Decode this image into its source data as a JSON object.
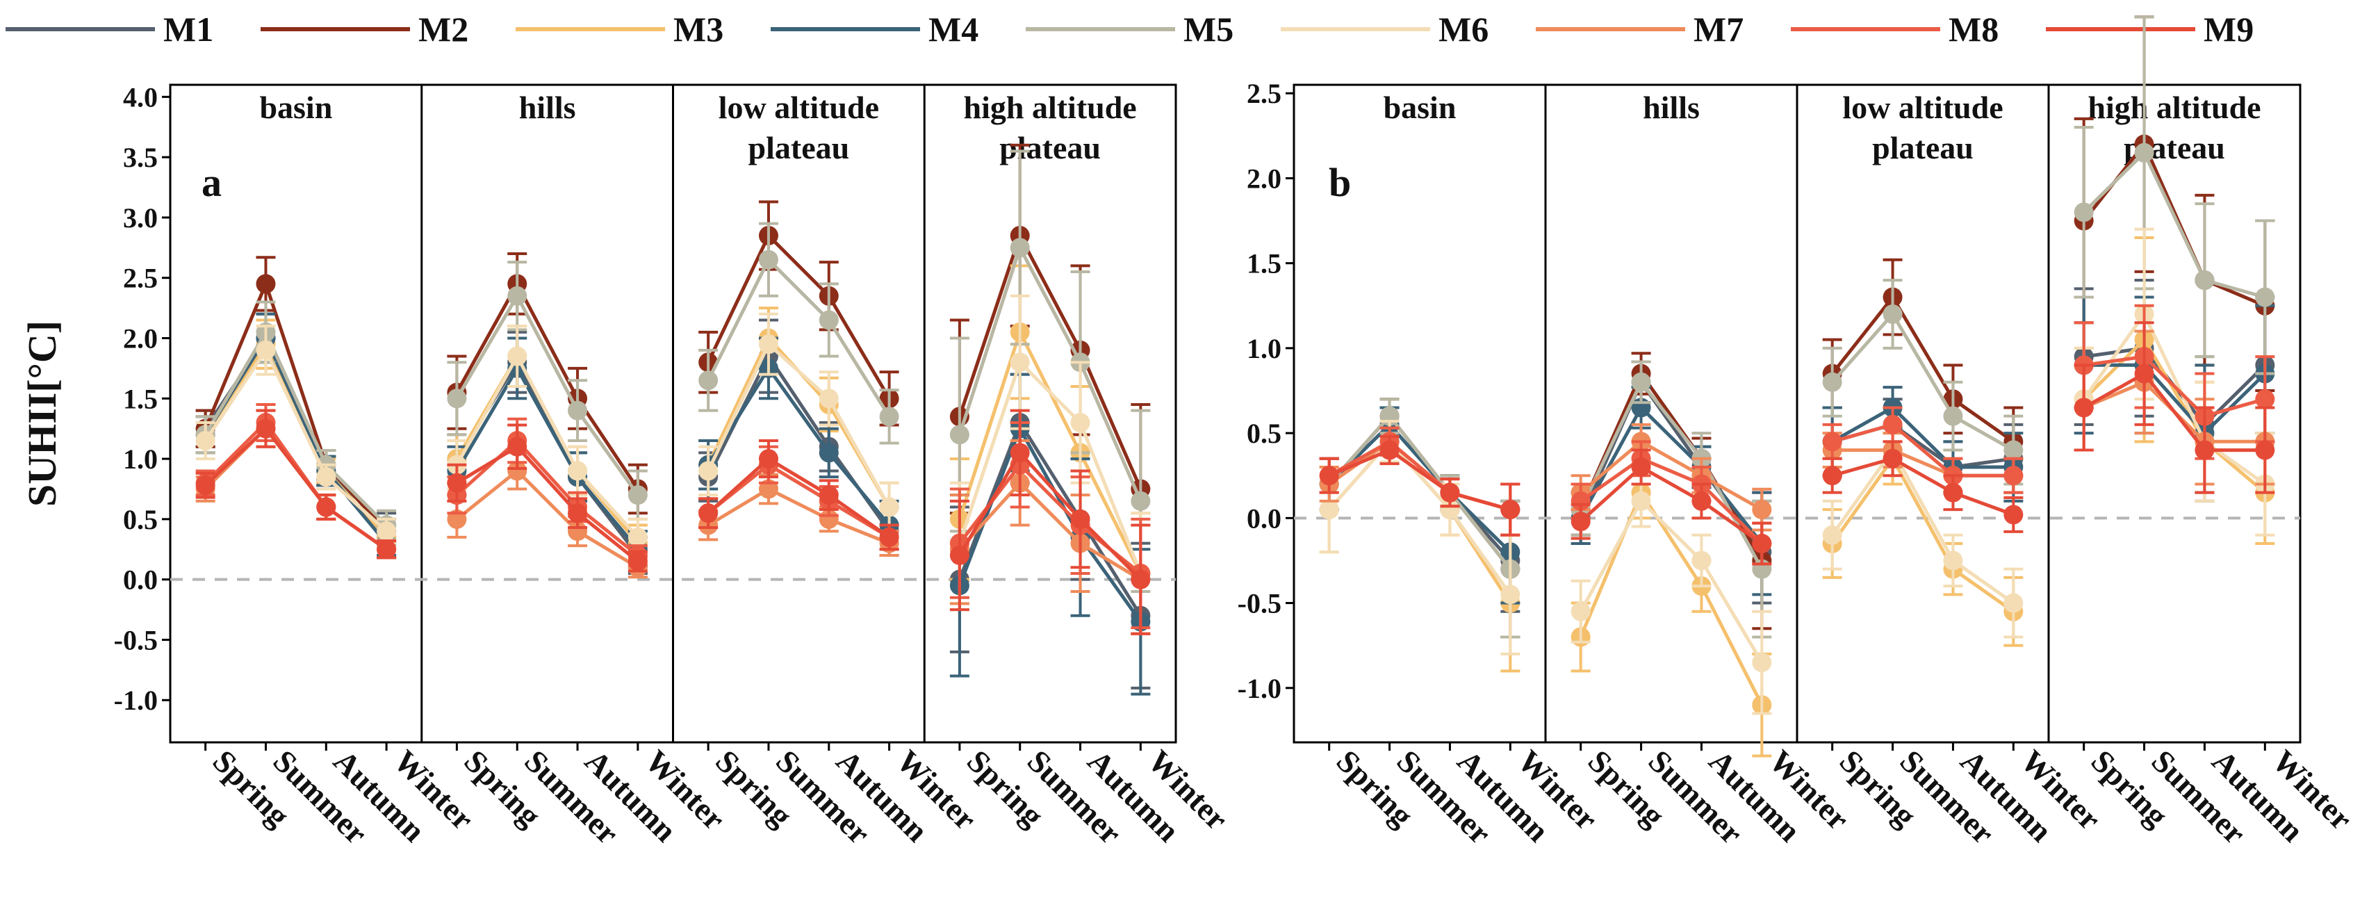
{
  "legend": [
    "M1",
    "M2",
    "M3",
    "M4",
    "M5",
    "M6",
    "M7",
    "M8",
    "M9"
  ],
  "colors": {
    "M1": "#55606e",
    "M2": "#8c2d19",
    "M3": "#f5c06c",
    "M4": "#3b6379",
    "M5": "#b8b7a3",
    "M6": "#f4ddb5",
    "M7": "#ef8b5a",
    "M8": "#ec5c45",
    "M9": "#e54a37"
  },
  "chart_data": [
    {
      "type": "line",
      "panel_label": "a",
      "ylabel": "SUHII[°C]",
      "ylim": [
        -1.35,
        4.1
      ],
      "yticks": [
        "4.0",
        "3.5",
        "3.0",
        "2.5",
        "2.0",
        "1.5",
        "1.0",
        "0.5",
        "0.0",
        "-0.5",
        "-1.0"
      ],
      "regions": [
        {
          "label": [
            "basin"
          ]
        },
        {
          "label": [
            "hills"
          ]
        },
        {
          "label": [
            "low altitude",
            "plateau"
          ]
        },
        {
          "label": [
            "high altitude",
            "plateau"
          ]
        }
      ],
      "categories": [
        "Spring",
        "Summer",
        "Autumn",
        "Winter"
      ],
      "series": [
        {
          "name": "M1",
          "values": [
            [
              1.25,
              2.0,
              0.9,
              0.45
            ],
            [
              1.0,
              1.8,
              0.85,
              0.2
            ],
            [
              0.85,
              1.85,
              1.1,
              0.4
            ],
            [
              0.0,
              1.3,
              0.5,
              -0.3
            ]
          ],
          "err": [
            [
              0.15,
              0.2,
              0.12,
              0.1
            ],
            [
              0.2,
              0.25,
              0.2,
              0.15
            ],
            [
              0.2,
              0.3,
              0.2,
              0.2
            ],
            [
              0.6,
              0.4,
              0.5,
              0.6
            ]
          ]
        },
        {
          "name": "M2",
          "values": [
            [
              1.25,
              2.45,
              0.95,
              0.4
            ],
            [
              1.55,
              2.45,
              1.5,
              0.75
            ],
            [
              1.8,
              2.85,
              2.35,
              1.5
            ],
            [
              1.35,
              2.85,
              1.9,
              0.75
            ]
          ],
          "err": [
            [
              0.15,
              0.22,
              0.12,
              0.1
            ],
            [
              0.3,
              0.25,
              0.25,
              0.2
            ],
            [
              0.25,
              0.28,
              0.28,
              0.22
            ],
            [
              0.8,
              0.75,
              0.7,
              0.7
            ]
          ]
        },
        {
          "name": "M3",
          "values": [
            [
              1.2,
              1.95,
              0.9,
              0.35
            ],
            [
              1.0,
              1.85,
              0.9,
              0.3
            ],
            [
              0.95,
              2.0,
              1.45,
              0.6
            ],
            [
              0.5,
              2.05,
              1.05,
              0.05
            ]
          ],
          "err": [
            [
              0.15,
              0.2,
              0.1,
              0.1
            ],
            [
              0.2,
              0.25,
              0.2,
              0.15
            ],
            [
              0.2,
              0.25,
              0.22,
              0.2
            ],
            [
              0.5,
              0.55,
              0.55,
              0.5
            ]
          ]
        },
        {
          "name": "M4",
          "values": [
            [
              1.2,
              2.0,
              0.9,
              0.3
            ],
            [
              0.9,
              1.75,
              0.85,
              0.25
            ],
            [
              0.95,
              1.75,
              1.05,
              0.45
            ],
            [
              -0.05,
              1.25,
              0.35,
              -0.35
            ]
          ],
          "err": [
            [
              0.15,
              0.2,
              0.12,
              0.1
            ],
            [
              0.2,
              0.25,
              0.2,
              0.15
            ],
            [
              0.2,
              0.25,
              0.2,
              0.2
            ],
            [
              0.75,
              0.45,
              0.65,
              0.6
            ]
          ]
        },
        {
          "name": "M5",
          "values": [
            [
              1.2,
              2.05,
              0.95,
              0.45
            ],
            [
              1.5,
              2.35,
              1.4,
              0.7
            ],
            [
              1.65,
              2.65,
              2.15,
              1.35
            ],
            [
              1.2,
              2.75,
              1.8,
              0.65
            ]
          ],
          "err": [
            [
              0.15,
              0.25,
              0.12,
              0.12
            ],
            [
              0.3,
              0.28,
              0.25,
              0.2
            ],
            [
              0.25,
              0.3,
              0.3,
              0.22
            ],
            [
              0.8,
              0.8,
              0.75,
              0.75
            ]
          ]
        },
        {
          "name": "M6",
          "values": [
            [
              1.15,
              1.9,
              0.85,
              0.4
            ],
            [
              0.95,
              1.85,
              0.9,
              0.35
            ],
            [
              0.9,
              1.95,
              1.5,
              0.6
            ],
            [
              0.3,
              1.8,
              1.3,
              0.05
            ]
          ],
          "err": [
            [
              0.15,
              0.2,
              0.1,
              0.1
            ],
            [
              0.2,
              0.25,
              0.2,
              0.15
            ],
            [
              0.2,
              0.25,
              0.22,
              0.2
            ],
            [
              0.5,
              0.55,
              0.5,
              0.5
            ]
          ]
        },
        {
          "name": "M7",
          "values": [
            [
              0.75,
              1.25,
              0.6,
              0.25
            ],
            [
              0.5,
              0.9,
              0.4,
              0.1
            ],
            [
              0.45,
              0.75,
              0.5,
              0.3
            ],
            [
              0.25,
              0.8,
              0.3,
              0.0
            ]
          ],
          "err": [
            [
              0.1,
              0.15,
              0.1,
              0.07
            ],
            [
              0.15,
              0.15,
              0.12,
              0.08
            ],
            [
              0.12,
              0.12,
              0.1,
              0.1
            ],
            [
              0.45,
              0.35,
              0.4,
              0.45
            ]
          ]
        },
        {
          "name": "M8",
          "values": [
            [
              0.8,
              1.3,
              0.6,
              0.25
            ],
            [
              0.7,
              1.15,
              0.6,
              0.2
            ],
            [
              0.55,
              0.95,
              0.65,
              0.35
            ],
            [
              0.3,
              0.95,
              0.45,
              0.05
            ]
          ],
          "err": [
            [
              0.1,
              0.15,
              0.1,
              0.07
            ],
            [
              0.15,
              0.18,
              0.12,
              0.08
            ],
            [
              0.12,
              0.15,
              0.12,
              0.1
            ],
            [
              0.45,
              0.35,
              0.4,
              0.45
            ]
          ]
        },
        {
          "name": "M9",
          "values": [
            [
              0.78,
              1.25,
              0.6,
              0.25
            ],
            [
              0.8,
              1.1,
              0.55,
              0.15
            ],
            [
              0.55,
              1.0,
              0.7,
              0.35
            ],
            [
              0.2,
              1.05,
              0.5,
              0.0
            ]
          ],
          "err": [
            [
              0.1,
              0.15,
              0.1,
              0.07
            ],
            [
              0.15,
              0.18,
              0.12,
              0.08
            ],
            [
              0.12,
              0.15,
              0.12,
              0.1
            ],
            [
              0.45,
              0.35,
              0.4,
              0.45
            ]
          ]
        }
      ]
    },
    {
      "type": "line",
      "panel_label": "b",
      "ylabel": "",
      "ylim": [
        -1.32,
        2.55
      ],
      "yticks": [
        "2.5",
        "2.0",
        "1.5",
        "1.0",
        "0.5",
        "0.0",
        "-0.5",
        "-1.0"
      ],
      "regions": [
        {
          "label": [
            "basin"
          ]
        },
        {
          "label": [
            "hills"
          ]
        },
        {
          "label": [
            "low altitude",
            "plateau"
          ]
        },
        {
          "label": [
            "high altitude",
            "plateau"
          ]
        }
      ],
      "categories": [
        "Spring",
        "Summer",
        "Autumn",
        "Winter"
      ],
      "series": [
        {
          "name": "M1",
          "values": [
            [
              0.2,
              0.55,
              0.15,
              -0.25
            ],
            [
              0.0,
              0.8,
              0.3,
              -0.2
            ],
            [
              0.45,
              0.55,
              0.3,
              0.35
            ],
            [
              0.95,
              1.0,
              0.55,
              0.9
            ]
          ],
          "err": [
            [
              0.15,
              0.1,
              0.1,
              0.3
            ],
            [
              0.15,
              0.12,
              0.12,
              0.3
            ],
            [
              0.2,
              0.15,
              0.15,
              0.2
            ],
            [
              0.4,
              0.4,
              0.4,
              0.4
            ]
          ]
        },
        {
          "name": "M2",
          "values": [
            [
              0.2,
              0.6,
              0.15,
              -0.3
            ],
            [
              0.05,
              0.85,
              0.35,
              -0.25
            ],
            [
              0.85,
              1.3,
              0.7,
              0.45
            ],
            [
              1.75,
              2.2,
              1.4,
              1.25
            ]
          ],
          "err": [
            [
              0.15,
              0.1,
              0.1,
              0.4
            ],
            [
              0.15,
              0.12,
              0.12,
              0.4
            ],
            [
              0.2,
              0.22,
              0.2,
              0.2
            ],
            [
              0.6,
              0.75,
              0.5,
              0.5
            ]
          ]
        },
        {
          "name": "M3",
          "values": [
            [
              0.05,
              0.45,
              0.05,
              -0.5
            ],
            [
              -0.7,
              0.15,
              -0.4,
              -1.1
            ],
            [
              -0.15,
              0.35,
              -0.3,
              -0.55
            ],
            [
              0.7,
              1.05,
              0.45,
              0.15
            ]
          ],
          "err": [
            [
              0.25,
              0.12,
              0.15,
              0.4
            ],
            [
              0.2,
              0.15,
              0.15,
              0.3
            ],
            [
              0.2,
              0.15,
              0.15,
              0.2
            ],
            [
              0.3,
              0.6,
              0.35,
              0.3
            ]
          ]
        },
        {
          "name": "M4",
          "values": [
            [
              0.2,
              0.55,
              0.15,
              -0.2
            ],
            [
              0.0,
              0.65,
              0.3,
              -0.15
            ],
            [
              0.45,
              0.65,
              0.3,
              0.3
            ],
            [
              0.9,
              0.9,
              0.5,
              0.85
            ]
          ],
          "err": [
            [
              0.15,
              0.1,
              0.1,
              0.3
            ],
            [
              0.15,
              0.12,
              0.12,
              0.3
            ],
            [
              0.2,
              0.12,
              0.15,
              0.2
            ],
            [
              0.4,
              0.4,
              0.4,
              0.4
            ]
          ]
        },
        {
          "name": "M5",
          "values": [
            [
              0.2,
              0.6,
              0.15,
              -0.3
            ],
            [
              0.05,
              0.8,
              0.35,
              -0.3
            ],
            [
              0.8,
              1.2,
              0.6,
              0.4
            ],
            [
              1.8,
              2.15,
              1.4,
              1.3
            ]
          ],
          "err": [
            [
              0.15,
              0.1,
              0.1,
              0.4
            ],
            [
              0.15,
              0.12,
              0.15,
              0.4
            ],
            [
              0.2,
              0.2,
              0.2,
              0.2
            ],
            [
              0.5,
              0.8,
              0.45,
              0.45
            ]
          ]
        },
        {
          "name": "M6",
          "values": [
            [
              0.05,
              0.45,
              0.05,
              -0.45
            ],
            [
              -0.55,
              0.1,
              -0.25,
              -0.85
            ],
            [
              -0.1,
              0.4,
              -0.25,
              -0.5
            ],
            [
              0.7,
              1.2,
              0.45,
              0.2
            ]
          ],
          "err": [
            [
              0.25,
              0.12,
              0.15,
              0.35
            ],
            [
              0.18,
              0.15,
              0.15,
              0.3
            ],
            [
              0.2,
              0.15,
              0.15,
              0.2
            ],
            [
              0.3,
              0.5,
              0.35,
              0.3
            ]
          ]
        },
        {
          "name": "M7",
          "values": [
            [
              0.2,
              0.45,
              0.15,
              0.05
            ],
            [
              0.15,
              0.45,
              0.25,
              0.05
            ],
            [
              0.4,
              0.4,
              0.25,
              0.25
            ],
            [
              0.65,
              0.8,
              0.45,
              0.45
            ]
          ],
          "err": [
            [
              0.1,
              0.08,
              0.08,
              0.15
            ],
            [
              0.1,
              0.1,
              0.1,
              0.12
            ],
            [
              0.1,
              0.1,
              0.1,
              0.1
            ],
            [
              0.25,
              0.3,
              0.25,
              0.25
            ]
          ]
        },
        {
          "name": "M8",
          "values": [
            [
              0.25,
              0.45,
              0.15,
              0.05
            ],
            [
              0.1,
              0.35,
              0.2,
              -0.15
            ],
            [
              0.45,
              0.55,
              0.25,
              0.25
            ],
            [
              0.9,
              0.95,
              0.6,
              0.7
            ]
          ],
          "err": [
            [
              0.1,
              0.08,
              0.08,
              0.15
            ],
            [
              0.1,
              0.1,
              0.1,
              0.12
            ],
            [
              0.1,
              0.1,
              0.1,
              0.1
            ],
            [
              0.25,
              0.3,
              0.25,
              0.25
            ]
          ]
        },
        {
          "name": "M9",
          "values": [
            [
              0.25,
              0.4,
              0.15,
              0.05
            ],
            [
              -0.02,
              0.3,
              0.1,
              -0.15
            ],
            [
              0.25,
              0.35,
              0.15,
              0.02
            ],
            [
              0.65,
              0.85,
              0.4,
              0.4
            ]
          ],
          "err": [
            [
              0.1,
              0.08,
              0.08,
              0.15
            ],
            [
              0.1,
              0.1,
              0.1,
              0.12
            ],
            [
              0.1,
              0.1,
              0.1,
              0.1
            ],
            [
              0.25,
              0.3,
              0.25,
              0.25
            ]
          ]
        }
      ]
    }
  ]
}
